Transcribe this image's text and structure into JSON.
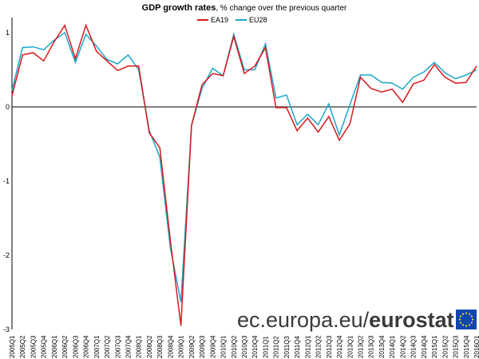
{
  "chart_data": {
    "type": "line",
    "title": "GDP growth rates",
    "subtitle": ", % change over the previous quarter",
    "x": [
      "2005Q1",
      "2005Q2",
      "2005Q3",
      "2005Q4",
      "2006Q1",
      "2006Q2",
      "2006Q3",
      "2006Q4",
      "2007Q1",
      "2007Q2",
      "2007Q3",
      "2007Q4",
      "2008Q1",
      "2008Q2",
      "2008Q3",
      "2008Q4",
      "2009Q1",
      "2009Q2",
      "2009Q3",
      "2009Q4",
      "2010Q1",
      "2010Q2",
      "2010Q3",
      "2010Q4",
      "2011Q1",
      "2011Q2",
      "2011Q3",
      "2011Q4",
      "2012Q1",
      "2012Q2",
      "2012Q3",
      "2012Q4",
      "2013Q1",
      "2013Q2",
      "2013Q3",
      "2013Q4",
      "2014Q1",
      "2014Q2",
      "2014Q3",
      "2014Q4",
      "2015Q1",
      "2015Q2",
      "2015Q3",
      "2015Q4",
      "2016Q1"
    ],
    "series": [
      {
        "name": "EA19",
        "color": "#d7191c",
        "values": [
          0.15,
          0.7,
          0.73,
          0.62,
          0.88,
          1.1,
          0.65,
          1.1,
          0.75,
          0.62,
          0.49,
          0.55,
          0.55,
          -0.35,
          -0.55,
          -1.8,
          -2.95,
          -0.25,
          0.3,
          0.45,
          0.42,
          0.95,
          0.45,
          0.55,
          0.8,
          -0.01,
          -0.01,
          -0.32,
          -0.15,
          -0.34,
          -0.13,
          -0.45,
          -0.23,
          0.4,
          0.25,
          0.2,
          0.24,
          0.06,
          0.31,
          0.36,
          0.57,
          0.4,
          0.32,
          0.33,
          0.55
        ]
      },
      {
        "name": "EU28",
        "color": "#1ba7c9",
        "values": [
          0.22,
          0.8,
          0.81,
          0.77,
          0.9,
          1.0,
          0.6,
          0.98,
          0.82,
          0.64,
          0.58,
          0.7,
          0.5,
          -0.32,
          -0.68,
          -1.9,
          -2.63,
          -0.25,
          0.25,
          0.52,
          0.42,
          0.98,
          0.5,
          0.5,
          0.85,
          0.12,
          0.16,
          -0.24,
          -0.1,
          -0.24,
          0.04,
          -0.38,
          0.03,
          0.43,
          0.43,
          0.33,
          0.32,
          0.24,
          0.4,
          0.47,
          0.6,
          0.46,
          0.38,
          0.43,
          0.5
        ]
      }
    ],
    "yticks": [
      "1",
      "0",
      "-1",
      "-2",
      "-3"
    ],
    "ylim": [
      -3,
      1.2
    ],
    "grid": false,
    "legend": "top-center"
  },
  "branding": {
    "url": "ec.europa.eu/",
    "name": "eurostat"
  },
  "colors": {
    "axis": "#000000",
    "brand_text": "#3a3a3a",
    "eu_flag_blue": "#0f47af",
    "eu_flag_stars": "#ffd617"
  }
}
